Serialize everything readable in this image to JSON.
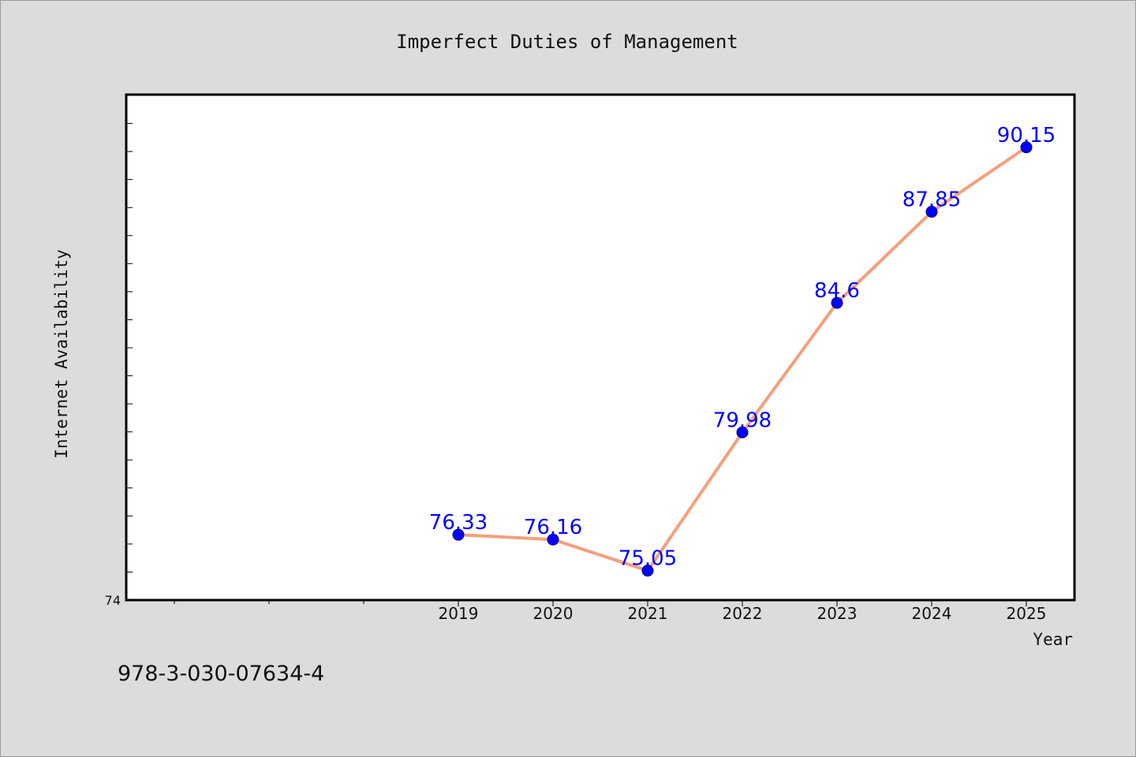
{
  "title": "Imperfect Duties of Management",
  "footer_text": "978-3-030-07634-4",
  "chart_data": {
    "type": "line",
    "title": "Imperfect Duties of Management",
    "xlabel": "Year",
    "ylabel": "Internet Availability",
    "x": [
      2019,
      2020,
      2021,
      2022,
      2023,
      2024,
      2025
    ],
    "x_tick_labels": [
      "2019",
      "2020",
      "2021",
      "2022",
      "2023",
      "2024",
      "2025"
    ],
    "series": [
      {
        "values": [
          76.33,
          76.16,
          75.05,
          79.98,
          84.6,
          87.85,
          90.15
        ],
        "data_labels": [
          "76.33",
          "76.16",
          "75.05",
          "79.98",
          "84.6",
          "87.85",
          "90.15"
        ]
      }
    ],
    "xlim": [
      2015.5,
      2025.5
    ],
    "ylim": [
      74,
      92
    ],
    "y_tick_labels": [
      "74"
    ],
    "y_minor_tick_step": 1,
    "grid": false,
    "line_color": "#f4a07c",
    "marker_color": "#0000ff",
    "label_color": "#0000ff"
  }
}
